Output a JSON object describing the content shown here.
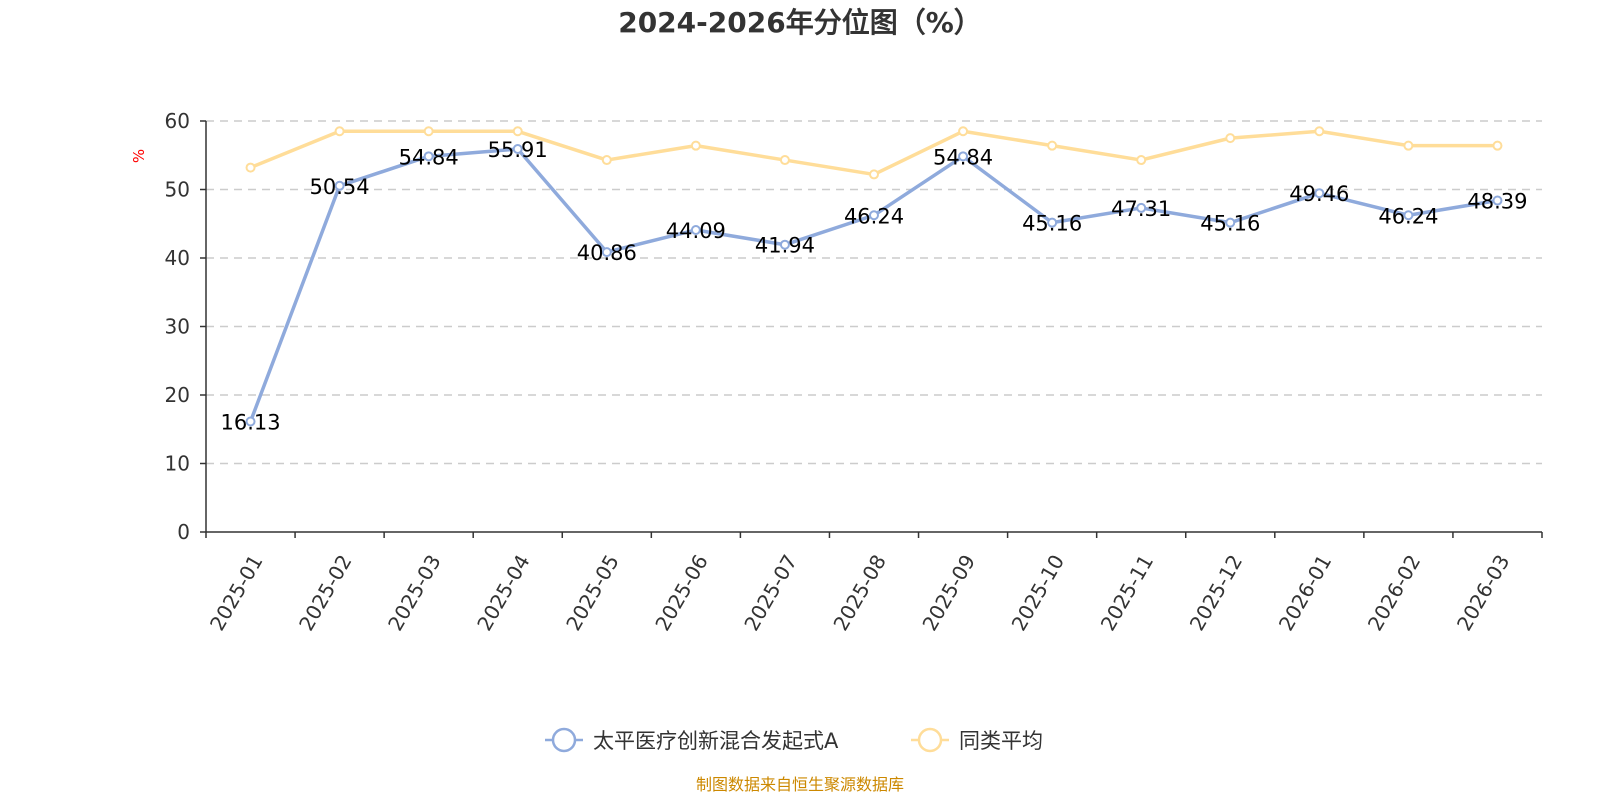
{
  "chart_data": {
    "type": "line",
    "title": "2024-2026年分位图（%）",
    "ylabel": "%",
    "xlabel": "",
    "ylim": [
      0,
      60
    ],
    "yticks": [
      0,
      10,
      20,
      30,
      40,
      50,
      60
    ],
    "grid": true,
    "legend_position": "bottom-center",
    "categories": [
      "2025-01",
      "2025-02",
      "2025-03",
      "2025-04",
      "2025-05",
      "2025-06",
      "2025-07",
      "2025-08",
      "2025-09",
      "2025-10",
      "2025-11",
      "2025-12",
      "2026-01",
      "2026-02",
      "2026-03"
    ],
    "series": [
      {
        "name": "太平医疗创新混合发起式A",
        "color": "#8faadc",
        "values": [
          16.13,
          50.54,
          54.84,
          55.91,
          40.86,
          44.09,
          41.94,
          46.24,
          54.84,
          45.16,
          47.31,
          45.16,
          49.46,
          46.24,
          48.39
        ],
        "labels": [
          "16.13",
          "50.54",
          "54.84",
          "55.91",
          "40.86",
          "44.09",
          "41.94",
          "46.24",
          "54.84",
          "45.16",
          "47.31",
          "45.16",
          "49.46",
          "46.24",
          "48.39"
        ],
        "show_labels": true
      },
      {
        "name": "同类平均",
        "color": "#ffdd99",
        "values": [
          53.2,
          58.5,
          58.5,
          58.5,
          54.3,
          56.4,
          54.3,
          52.2,
          58.5,
          56.4,
          54.3,
          57.5,
          58.5,
          56.4,
          56.4
        ],
        "show_labels": false
      }
    ],
    "source": "制图数据来自恒生聚源数据库"
  },
  "colors": {
    "axis": "#333333",
    "grid": "#cccccc",
    "unit": "#ff0000",
    "source": "#cc8800"
  }
}
